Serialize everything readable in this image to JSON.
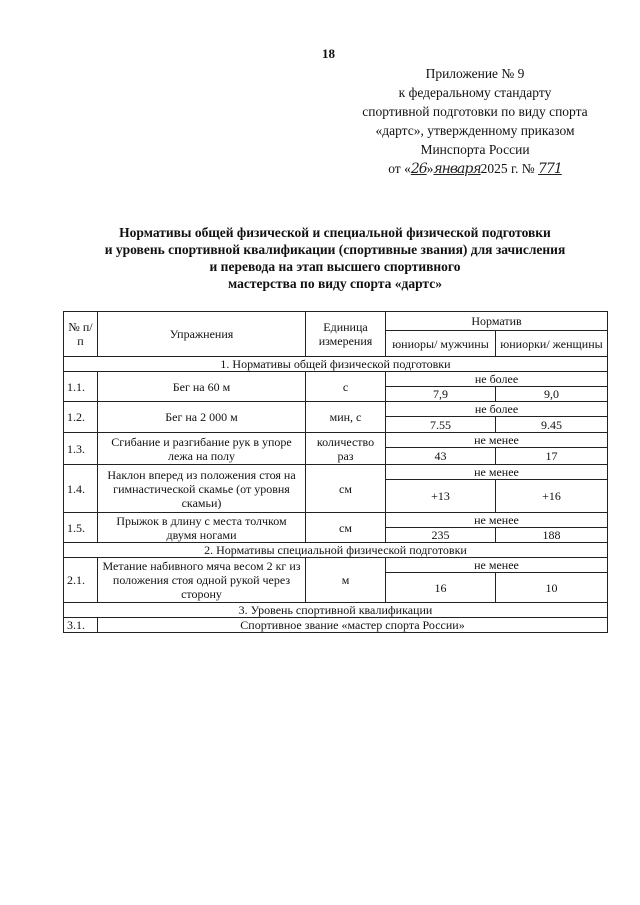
{
  "page_number": "18",
  "appendix": {
    "lines": [
      "Приложение № 9",
      "к федеральному стандарту",
      "спортивной подготовки по виду спорта",
      "«дартс», утвержденному приказом",
      "Минспорта России"
    ],
    "date_prefix": "от «",
    "day": "26",
    "mid": "»",
    "month": "января",
    "year_text": "2025 г. №",
    "number": "771"
  },
  "title": {
    "lines": [
      "Нормативы общей физической и специальной физической подготовки",
      "и уровень спортивной квалификации (спортивные звания) для зачисления",
      "и перевода на этап высшего спортивного",
      "мастерства по виду спорта «дартс»"
    ]
  },
  "table": {
    "headers": {
      "num": "№ п/п",
      "exercise": "Упражнения",
      "unit": "Единица измерения",
      "norm": "Норматив",
      "male": "юниоры/ мужчины",
      "female": "юниорки/ женщины"
    },
    "sections": [
      {
        "title": "1. Нормативы общей физической подготовки",
        "rows": [
          {
            "num": "1.1.",
            "exercise": "Бег на 60 м",
            "unit": "с",
            "cond": "не более",
            "male": "7,9",
            "female": "9,0"
          },
          {
            "num": "1.2.",
            "exercise": "Бег на 2 000 м",
            "unit": "мин, с",
            "cond": "не более",
            "male": "7.55",
            "female": "9.45"
          },
          {
            "num": "1.3.",
            "exercise": "Сгибание и разгибание рук в упоре лежа на полу",
            "unit": "количество раз",
            "cond": "не менее",
            "male": "43",
            "female": "17"
          },
          {
            "num": "1.4.",
            "exercise": "Наклон вперед из положения стоя на гимнастической скамье (от уровня скамьи)",
            "unit": "см",
            "cond": "не менее",
            "male": "+13",
            "female": "+16"
          },
          {
            "num": "1.5.",
            "exercise": "Прыжок в длину с места толчком двумя ногами",
            "unit": "см",
            "cond": "не менее",
            "male": "235",
            "female": "188"
          }
        ]
      },
      {
        "title": "2. Нормативы специальной физической подготовки",
        "rows": [
          {
            "num": "2.1.",
            "exercise": "Метание набивного мяча весом 2 кг из положения стоя одной рукой через сторону",
            "unit": "м",
            "cond": "не менее",
            "male": "16",
            "female": "10"
          }
        ]
      },
      {
        "title": "3. Уровень спортивной квалификации",
        "rows": [
          {
            "num": "3.1.",
            "text": "Спортивное звание «мастер спорта России»"
          }
        ]
      }
    ]
  }
}
